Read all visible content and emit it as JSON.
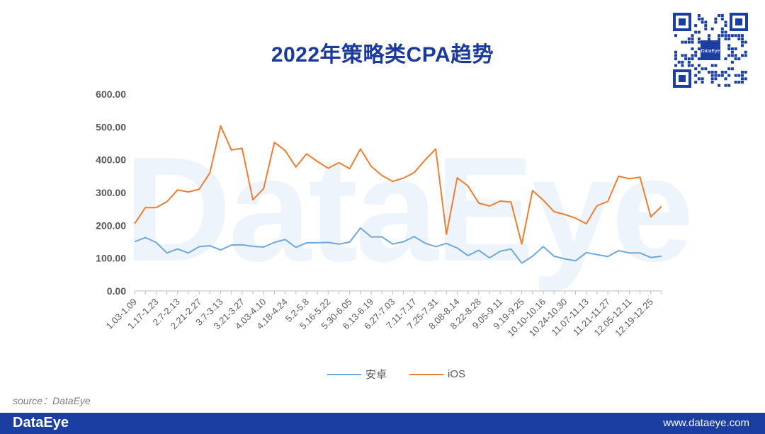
{
  "title": "2022年策略类CPA趋势",
  "source": "source：DataEye",
  "footer": {
    "brand": "DataEye",
    "url": "www.dataeye.com"
  },
  "qr": {
    "label": "DataEye"
  },
  "watermark": "DataEye",
  "colors": {
    "android": "#6fa8dc",
    "ios": "#ed7d31",
    "title": "#1a3a9c",
    "footer": "#1b3ea3"
  },
  "chart_data": {
    "type": "line",
    "title": "2022年策略类CPA趋势",
    "ylim": [
      0,
      600
    ],
    "yticks": [
      "0.00",
      "100.00",
      "200.00",
      "300.00",
      "400.00",
      "500.00",
      "600.00"
    ],
    "grid": false,
    "legend_position": "bottom",
    "tick_labels": [
      "1.03-1.09",
      "1.17-1.23",
      "2.7-2.13",
      "2.21-2.27",
      "3.7-3.13",
      "3.21-3.27",
      "4.03-4.10",
      "4.18-4.24",
      "5.2-5.8",
      "5.16-5.22",
      "5.30-6.05",
      "6.13-6.19",
      "6.27-7.03",
      "7.11-7.17",
      "7.25-7.31",
      "8.08-8.14",
      "8.22-8.28",
      "9.05-9.11",
      "9.19-9.25",
      "10.10-10.16",
      "10.24-10.30",
      "11.07-11.13",
      "11.21-11.27",
      "12.05-12.11",
      "12.19-12.25"
    ],
    "series": [
      {
        "name": "安卓",
        "values": [
          150,
          163,
          148,
          116,
          128,
          116,
          135,
          138,
          125,
          140,
          141,
          136,
          134,
          148,
          157,
          133,
          147,
          147,
          148,
          143,
          149,
          192,
          165,
          165,
          143,
          150,
          166,
          146,
          135,
          145,
          131,
          108,
          124,
          101,
          121,
          128,
          85,
          106,
          135,
          106,
          98,
          92,
          117,
          111,
          105,
          123,
          116,
          116,
          102,
          106
        ]
      },
      {
        "name": "iOS",
        "values": [
          205,
          254,
          254,
          272,
          308,
          302,
          310,
          360,
          503,
          430,
          435,
          278,
          312,
          453,
          428,
          378,
          418,
          395,
          374,
          391,
          373,
          433,
          380,
          352,
          334,
          344,
          361,
          399,
          433,
          173,
          345,
          320,
          268,
          259,
          274,
          271,
          143,
          306,
          277,
          242,
          233,
          222,
          205,
          260,
          273,
          350,
          342,
          347,
          226,
          258
        ]
      }
    ]
  }
}
